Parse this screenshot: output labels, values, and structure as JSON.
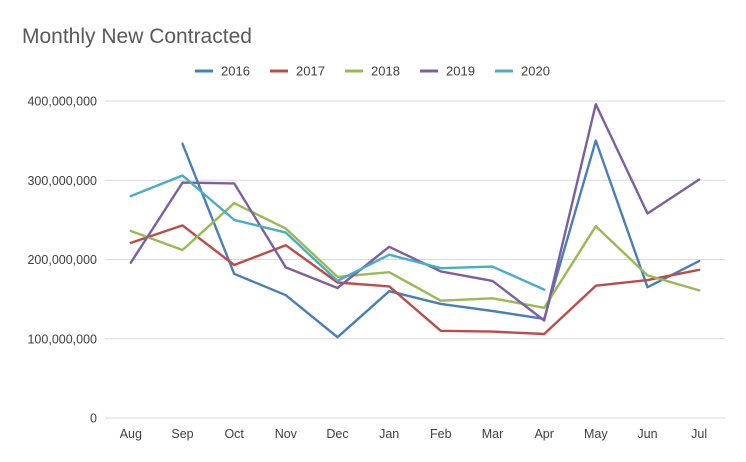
{
  "chart_data": {
    "type": "line",
    "title": "Monthly New Contracted",
    "xlabel": "",
    "ylabel": "",
    "categories": [
      "Aug",
      "Sep",
      "Oct",
      "Nov",
      "Dec",
      "Jan",
      "Feb",
      "Mar",
      "Apr",
      "May",
      "Jun",
      "Jul"
    ],
    "ylim": [
      0,
      400000000
    ],
    "yticks": [
      0,
      100000000,
      200000000,
      300000000,
      400000000
    ],
    "ytick_labels": [
      "0",
      "100,000,000",
      "200,000,000",
      "300,000,000",
      "400,000,000"
    ],
    "grid": true,
    "legend_position": "top",
    "series": [
      {
        "name": "2016",
        "color": "#4a7ebb",
        "values": [
          null,
          346000000,
          182000000,
          155000000,
          102000000,
          160000000,
          144000000,
          135000000,
          125000000,
          350000000,
          165000000,
          198000000
        ]
      },
      {
        "name": "2017",
        "color": "#be4b48",
        "values": [
          221000000,
          243000000,
          193000000,
          218000000,
          171000000,
          166000000,
          110000000,
          109000000,
          106000000,
          167000000,
          174000000,
          187000000
        ]
      },
      {
        "name": "2018",
        "color": "#98b954",
        "values": [
          236000000,
          212000000,
          271000000,
          239000000,
          178000000,
          184000000,
          148000000,
          151000000,
          139000000,
          242000000,
          180000000,
          161000000
        ]
      },
      {
        "name": "2019",
        "color": "#7d5fa0",
        "values": [
          196000000,
          297000000,
          296000000,
          190000000,
          164000000,
          216000000,
          185000000,
          173000000,
          123000000,
          396000000,
          258000000,
          301000000
        ]
      },
      {
        "name": "2020",
        "color": "#4bacc6",
        "values": [
          280000000,
          306000000,
          250000000,
          234000000,
          173000000,
          206000000,
          189000000,
          191000000,
          162000000,
          null,
          null,
          null
        ]
      }
    ]
  }
}
